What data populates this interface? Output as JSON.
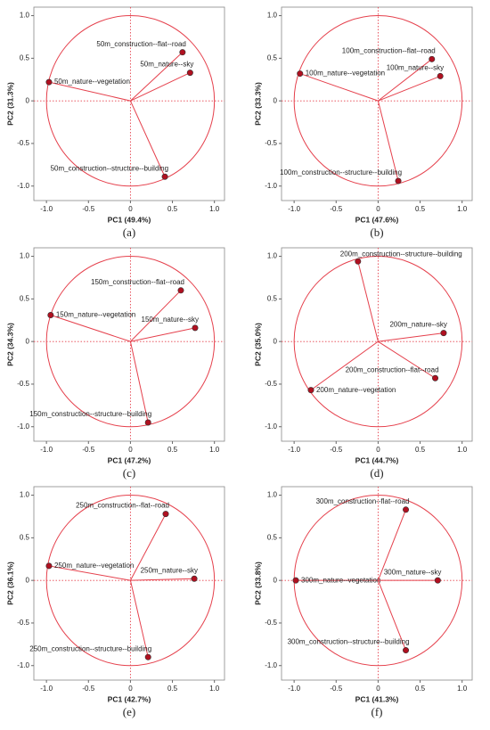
{
  "chart_data": [
    {
      "type": "scatter",
      "caption": "(a)",
      "xlabel": "PC1 (49.4%)",
      "ylabel": "PC2 (31.3%)",
      "point_labels": [
        "50m_nature--vegetation",
        "50m_construction--flat--road",
        "50m_nature--sky",
        "50m_construction--structure--building"
      ],
      "x": [
        -0.97,
        0.62,
        0.71,
        0.41
      ],
      "y": [
        0.22,
        0.57,
        0.33,
        -0.89
      ],
      "xlim": [
        -1.15,
        1.12
      ],
      "ylim": [
        -1.17,
        1.1
      ],
      "xticks": [
        {
          "value": -1,
          "label": "-1.0"
        },
        {
          "value": -0.5,
          "label": "-0.5"
        },
        0,
        {
          "value": 0.5,
          "label": "0.5"
        },
        {
          "value": 1,
          "label": "1.0"
        }
      ],
      "yticks": [
        {
          "value": -1,
          "label": "-1.0"
        },
        {
          "value": -0.5,
          "label": "-0.5"
        },
        0,
        {
          "value": 0.5,
          "label": "0.5"
        },
        {
          "value": 1,
          "label": "1.0"
        }
      ],
      "color": "#e5404c",
      "point_color": "#b01020"
    },
    {
      "type": "scatter",
      "caption": "(b)",
      "xlabel": "PC1 (47.6%)",
      "ylabel": "PC2 (33.3%)",
      "point_labels": [
        "100m_nature--vegetation",
        "100m_construction--flat--road",
        "100m_nature--sky",
        "100m_construction--structure--building"
      ],
      "x": [
        -0.93,
        0.64,
        0.74,
        0.24
      ],
      "y": [
        0.32,
        0.49,
        0.29,
        -0.94
      ],
      "xlim": [
        -1.15,
        1.12
      ],
      "ylim": [
        -1.17,
        1.1
      ],
      "xticks": [
        {
          "value": -1,
          "label": "-1.0"
        },
        {
          "value": -0.5,
          "label": "-0.5"
        },
        0,
        {
          "value": 0.5,
          "label": "0.5"
        },
        {
          "value": 1,
          "label": "1.0"
        }
      ],
      "yticks": [
        {
          "value": -1,
          "label": "-1.0"
        },
        {
          "value": -0.5,
          "label": "-0.5"
        },
        0,
        {
          "value": 0.5,
          "label": "0.5"
        },
        {
          "value": 1,
          "label": "1.0"
        }
      ],
      "color": "#e5404c",
      "point_color": "#b01020"
    },
    {
      "type": "scatter",
      "caption": "(c)",
      "xlabel": "PC1 (47.2%)",
      "ylabel": "PC2 (34.3%)",
      "point_labels": [
        "150m_nature--vegetation",
        "150m_construction--flat--road",
        "150m_nature--sky",
        "150m_construction--structure--building"
      ],
      "x": [
        -0.95,
        0.6,
        0.77,
        0.21
      ],
      "y": [
        0.31,
        0.6,
        0.16,
        -0.95
      ],
      "xlim": [
        -1.15,
        1.12
      ],
      "ylim": [
        -1.17,
        1.1
      ],
      "xticks": [
        {
          "value": -1,
          "label": "-1.0"
        },
        {
          "value": -0.5,
          "label": "-0.5"
        },
        0,
        {
          "value": 0.5,
          "label": "0.5"
        },
        {
          "value": 1,
          "label": "1.0"
        }
      ],
      "yticks": [
        {
          "value": -1,
          "label": "-1.0"
        },
        {
          "value": -0.5,
          "label": "-0.5"
        },
        0,
        {
          "value": 0.5,
          "label": "0.5"
        },
        {
          "value": 1,
          "label": "1.0"
        }
      ],
      "color": "#e5404c",
      "point_color": "#b01020"
    },
    {
      "type": "scatter",
      "caption": "(d)",
      "xlabel": "PC1 (44.7%)",
      "ylabel": "PC2 (35.0%)",
      "point_labels": [
        "200m_construction--structure--building",
        "200m_nature--sky",
        "200m_construction--flat--road",
        "200m_nature--vegetation"
      ],
      "x": [
        -0.24,
        0.78,
        0.68,
        -0.8
      ],
      "y": [
        0.94,
        0.1,
        -0.43,
        -0.57
      ],
      "xlim": [
        -1.15,
        1.12
      ],
      "ylim": [
        -1.17,
        1.1
      ],
      "xticks": [
        {
          "value": -1,
          "label": "-1.0"
        },
        {
          "value": -0.5,
          "label": "-0.5"
        },
        0,
        {
          "value": 0.5,
          "label": "0.5"
        },
        {
          "value": 1,
          "label": "1.0"
        }
      ],
      "yticks": [
        {
          "value": -1,
          "label": "-1.0"
        },
        {
          "value": -0.5,
          "label": "-0.5"
        },
        0,
        {
          "value": 0.5,
          "label": "0.5"
        },
        {
          "value": 1,
          "label": "1.0"
        }
      ],
      "color": "#e5404c",
      "point_color": "#b01020"
    },
    {
      "type": "scatter",
      "caption": "(e)",
      "xlabel": "PC1 (42.7%)",
      "ylabel": "PC2 (36.1%)",
      "point_labels": [
        "250m_nature--vegetation",
        "250m_construction--flat--road",
        "250m_nature--sky",
        "250m_construction--structure--building"
      ],
      "x": [
        -0.97,
        0.42,
        0.76,
        0.21
      ],
      "y": [
        0.17,
        0.78,
        0.02,
        -0.9
      ],
      "xlim": [
        -1.15,
        1.12
      ],
      "ylim": [
        -1.17,
        1.1
      ],
      "xticks": [
        {
          "value": -1,
          "label": "-1.0"
        },
        {
          "value": -0.5,
          "label": "-0.5"
        },
        0,
        {
          "value": 0.5,
          "label": "0.5"
        },
        {
          "value": 1,
          "label": "1.0"
        }
      ],
      "yticks": [
        {
          "value": -1,
          "label": "-1.0"
        },
        {
          "value": -0.5,
          "label": "-0.5"
        },
        0,
        {
          "value": 0.5,
          "label": "0.5"
        },
        {
          "value": 1,
          "label": "1.0"
        }
      ],
      "color": "#e5404c",
      "point_color": "#b01020"
    },
    {
      "type": "scatter",
      "caption": "(f)",
      "xlabel": "PC1 (41.3%)",
      "ylabel": "PC2 (33.8%)",
      "point_labels": [
        "300m_nature--vegetation",
        "300m_construction--flat--road",
        "300m_nature--sky",
        "300m_construction--structure--building"
      ],
      "x": [
        -0.98,
        0.33,
        0.71,
        0.33
      ],
      "y": [
        0.0,
        0.83,
        0.0,
        -0.82
      ],
      "xlim": [
        -1.15,
        1.12
      ],
      "ylim": [
        -1.17,
        1.1
      ],
      "xticks": [
        {
          "value": -1,
          "label": "-1.0"
        },
        {
          "value": -0.5,
          "label": "-0.5"
        },
        0,
        {
          "value": 0.5,
          "label": "0.5"
        },
        {
          "value": 1,
          "label": "1.0"
        }
      ],
      "yticks": [
        {
          "value": -1,
          "label": "-1.0"
        },
        {
          "value": -0.5,
          "label": "-0.5"
        },
        0,
        {
          "value": 0.5,
          "label": "0.5"
        },
        {
          "value": 1,
          "label": "1.0"
        }
      ],
      "color": "#e5404c",
      "point_color": "#b01020"
    }
  ]
}
